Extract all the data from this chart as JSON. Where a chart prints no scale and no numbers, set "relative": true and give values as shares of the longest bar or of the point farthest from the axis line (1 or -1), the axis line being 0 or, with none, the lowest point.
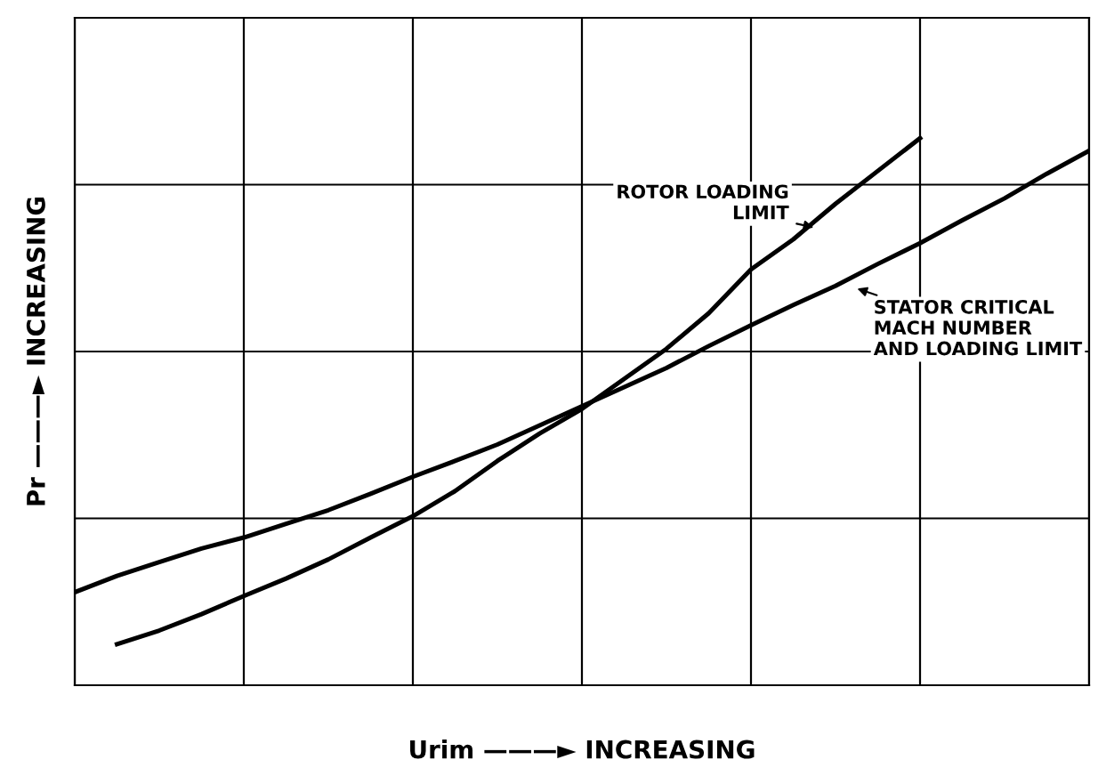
{
  "chart_data": {
    "type": "line",
    "relative": true,
    "xlabel": "Urim ———► INCREASING",
    "ylabel": "Pr ———► INCREASING",
    "categories": [
      null,
      null,
      null,
      null,
      null,
      null,
      null,
      null,
      null,
      null,
      null,
      null,
      null,
      null,
      null,
      null,
      null,
      null,
      null,
      null,
      null,
      null,
      null,
      null,
      null
    ],
    "tick_labels": false,
    "grid": true,
    "series": [
      {
        "name": "ROTOR LOADING\nLIMIT",
        "color": "#000000",
        "values": [
          null,
          0.075,
          0.1,
          0.13,
          0.163,
          0.195,
          0.23,
          0.27,
          0.309,
          0.355,
          0.41,
          0.46,
          0.505,
          0.56,
          0.615,
          0.68,
          0.76,
          0.815,
          0.88,
          0.94,
          1.0,
          null,
          null,
          null,
          null
        ]
      },
      {
        "name": "STATOR CRITICAL\nMACH NUMBER\nAND LOADING LIMIT",
        "color": "#000000",
        "values": [
          0.17,
          0.2,
          0.225,
          0.25,
          0.27,
          0.295,
          0.32,
          0.35,
          0.381,
          0.41,
          0.44,
          0.475,
          0.51,
          0.545,
          0.58,
          0.62,
          0.658,
          0.695,
          0.73,
          0.77,
          0.808,
          0.85,
          0.89,
          0.935,
          0.977
        ]
      }
    ]
  }
}
